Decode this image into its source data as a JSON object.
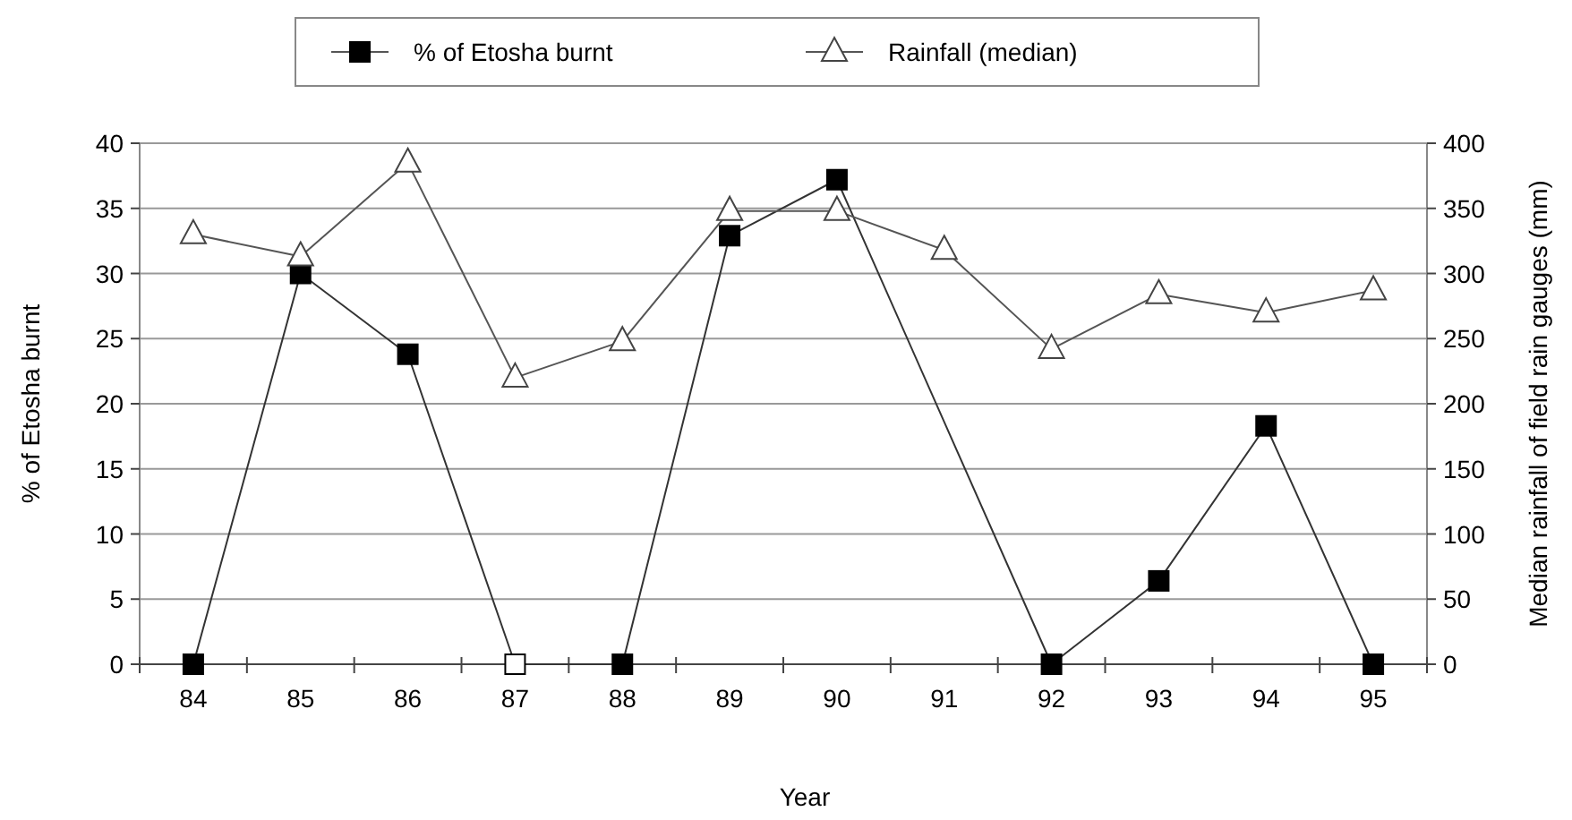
{
  "chart_data": {
    "type": "line",
    "xlabel": "Year",
    "ylabel": "% of Etosha burnt",
    "y2label": "Median rainfall of field rain gauges (mm)",
    "categories": [
      "84",
      "85",
      "86",
      "87",
      "88",
      "89",
      "90",
      "91",
      "92",
      "93",
      "94",
      "95"
    ],
    "series": [
      {
        "name": "% of Etosha burnt",
        "color": "#000000",
        "marker": "square",
        "colors": [
          "#000000",
          "#000000",
          "#000000",
          "#ffffff",
          "#000000",
          "#000000",
          "#000000",
          null,
          "#000000",
          "#000000",
          "#000000",
          "#000000"
        ],
        "values": [
          0,
          30,
          23.8,
          0,
          0,
          32.9,
          37.2,
          null,
          0,
          6.4,
          18.3,
          0
        ]
      },
      {
        "name": "Rainfall (median)",
        "color": "#ffffff",
        "marker": "triangle",
        "axis": "y2",
        "values": [
          330,
          313,
          385,
          220,
          248,
          348,
          348,
          318,
          242,
          284,
          270,
          287
        ]
      }
    ],
    "ylim": [
      0,
      40
    ],
    "yticks": [
      0,
      5,
      10,
      15,
      20,
      25,
      30,
      35,
      40
    ],
    "y2lim": [
      0,
      400
    ],
    "y2ticks": [
      0,
      50,
      100,
      150,
      200,
      250,
      300,
      350,
      400
    ],
    "grid": "y",
    "legend": "top"
  }
}
